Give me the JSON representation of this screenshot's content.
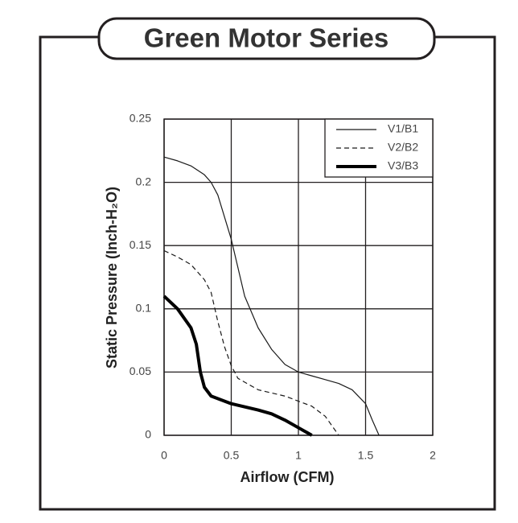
{
  "chart_data": {
    "type": "line",
    "title": "Green Motor Series",
    "xlabel": "Airflow (CFM)",
    "ylabel": "Static Pressure (Inch-H₂O)",
    "xlim": [
      0,
      2
    ],
    "xticks": [
      0,
      0.5,
      1,
      1.5,
      2
    ],
    "ylim": [
      0,
      0.25
    ],
    "yticks": [
      0,
      0.05,
      0.1,
      0.15,
      0.2,
      0.25
    ],
    "grid": true,
    "legend": "upper-right",
    "series": [
      {
        "name": "V1/B1",
        "color": "#1a1a1a",
        "width": 1.2,
        "dash": false,
        "x": [
          0,
          0.1,
          0.2,
          0.3,
          0.35,
          0.4,
          0.5,
          0.6,
          0.7,
          0.8,
          0.9,
          1.0,
          1.1,
          1.2,
          1.3,
          1.4,
          1.5,
          1.55,
          1.6
        ],
        "values": [
          0.22,
          0.217,
          0.213,
          0.206,
          0.2,
          0.19,
          0.155,
          0.11,
          0.085,
          0.068,
          0.056,
          0.05,
          0.047,
          0.044,
          0.041,
          0.036,
          0.025,
          0.012,
          0
        ]
      },
      {
        "name": "V2/B2",
        "color": "#1a1a1a",
        "width": 1.2,
        "dash": true,
        "x": [
          0,
          0.1,
          0.2,
          0.3,
          0.35,
          0.4,
          0.45,
          0.5,
          0.55,
          0.7,
          0.9,
          1.0,
          1.1,
          1.2,
          1.3
        ],
        "values": [
          0.146,
          0.141,
          0.135,
          0.123,
          0.113,
          0.09,
          0.07,
          0.055,
          0.045,
          0.036,
          0.031,
          0.027,
          0.023,
          0.015,
          0
        ]
      },
      {
        "name": "V3/B3",
        "color": "#000000",
        "width": 4,
        "dash": false,
        "x": [
          0,
          0.1,
          0.2,
          0.24,
          0.27,
          0.3,
          0.35,
          0.5,
          0.7,
          0.8,
          0.9,
          1.0,
          1.1
        ],
        "values": [
          0.11,
          0.1,
          0.085,
          0.072,
          0.05,
          0.038,
          0.031,
          0.025,
          0.02,
          0.017,
          0.012,
          0.006,
          0
        ]
      }
    ]
  }
}
